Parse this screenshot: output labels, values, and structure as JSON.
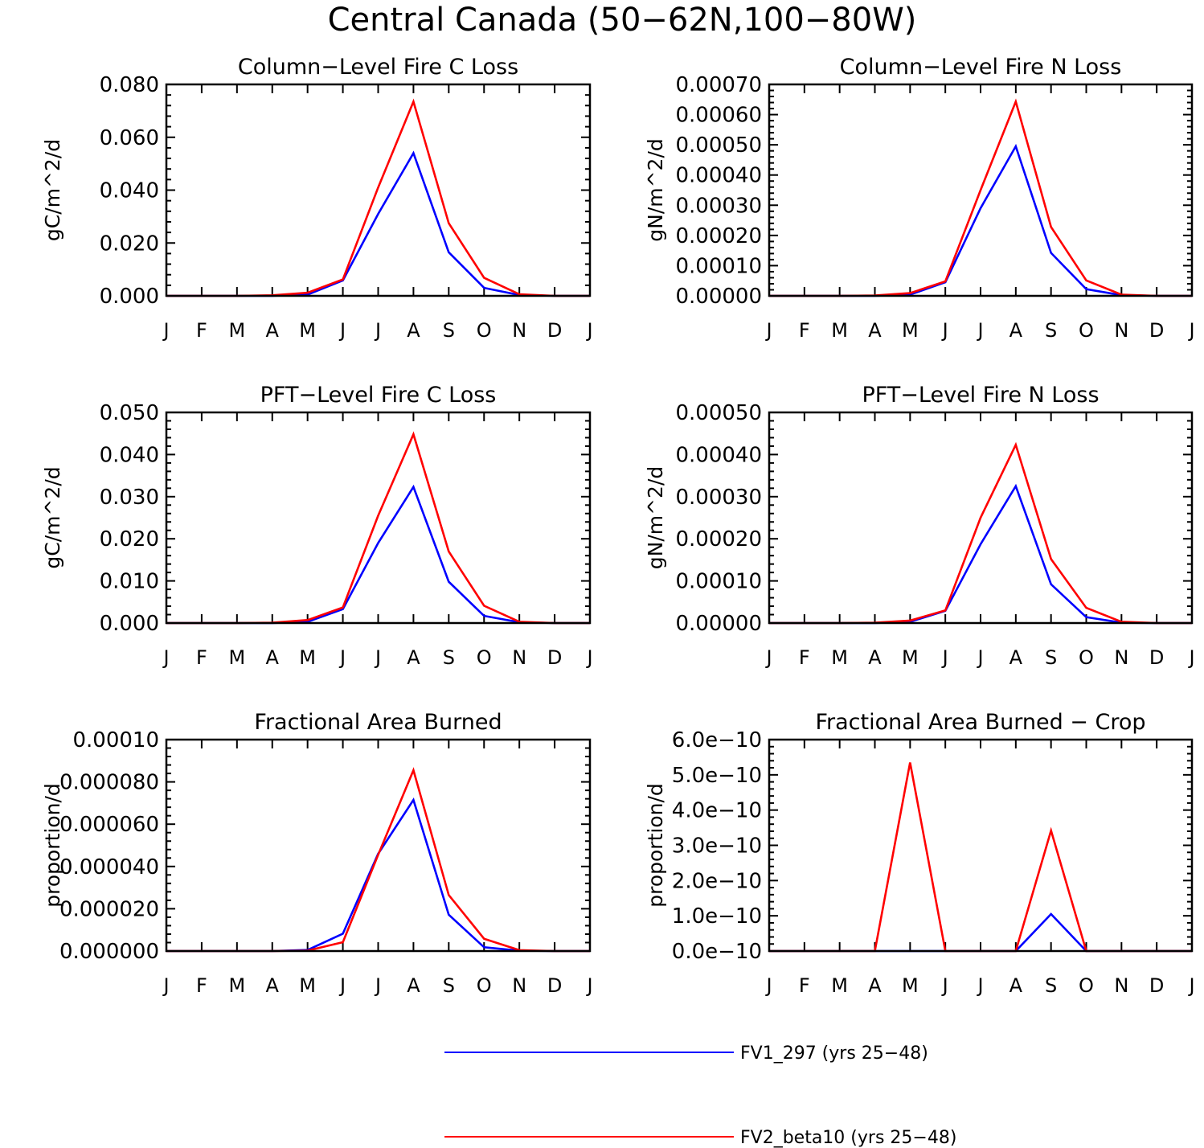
{
  "figure_title": "Central Canada (50−62N,100−80W)",
  "legend": [
    {
      "label": "FV1_297 (yrs 25−48)",
      "color": "#0000ff"
    },
    {
      "label": "FV2_beta10 (yrs 25−48)",
      "color": "#ff0000"
    }
  ],
  "chart_data": [
    {
      "type": "line",
      "title": "Column−Level Fire C Loss",
      "ylabel": "gC/m^2/d",
      "xlabel": "",
      "categories": [
        "J",
        "F",
        "M",
        "A",
        "M",
        "J",
        "J",
        "A",
        "S",
        "O",
        "N",
        "D",
        "J"
      ],
      "ylim": [
        0,
        0.08
      ],
      "yticks": [
        0,
        0.02,
        0.04,
        0.06,
        0.08
      ],
      "ytick_labels": [
        "0.000",
        "0.020",
        "0.040",
        "0.060",
        "0.080"
      ],
      "series": [
        {
          "name": "FV1_297 (yrs 25−48)",
          "color": "#0000ff",
          "values": [
            0,
            0,
            0,
            0,
            0.0005,
            0.0058,
            0.031,
            0.054,
            0.0165,
            0.003,
            0.0003,
            0,
            0
          ]
        },
        {
          "name": "FV2_beta10 (yrs 25−48)",
          "color": "#ff0000",
          "values": [
            0,
            0,
            0,
            0.0002,
            0.0012,
            0.0062,
            0.041,
            0.0735,
            0.0275,
            0.0068,
            0.0006,
            0,
            0
          ]
        }
      ]
    },
    {
      "type": "line",
      "title": "Column−Level Fire N Loss",
      "ylabel": "gN/m^2/d",
      "xlabel": "",
      "categories": [
        "J",
        "F",
        "M",
        "A",
        "M",
        "J",
        "J",
        "A",
        "S",
        "O",
        "N",
        "D",
        "J"
      ],
      "ylim": [
        0,
        0.0007
      ],
      "yticks": [
        0,
        0.0001,
        0.0002,
        0.0003,
        0.0004,
        0.0005,
        0.0006,
        0.0007
      ],
      "ytick_labels": [
        "0.00000",
        "0.00010",
        "0.00020",
        "0.00030",
        "0.00040",
        "0.00050",
        "0.00060",
        "0.00070"
      ],
      "series": [
        {
          "name": "FV1_297 (yrs 25−48)",
          "color": "#0000ff",
          "values": [
            0,
            0,
            0,
            0,
            4e-06,
            4.5e-05,
            0.00029,
            0.000495,
            0.000142,
            2.2e-05,
            2e-06,
            0,
            0
          ]
        },
        {
          "name": "FV2_beta10 (yrs 25−48)",
          "color": "#ff0000",
          "values": [
            0,
            0,
            0,
            1e-06,
            9e-06,
            4.8e-05,
            0.00035,
            0.000643,
            0.000228,
            5.1e-05,
            4e-06,
            0,
            0
          ]
        }
      ]
    },
    {
      "type": "line",
      "title": "PFT−Level Fire C Loss",
      "ylabel": "gC/m^2/d",
      "xlabel": "",
      "categories": [
        "J",
        "F",
        "M",
        "A",
        "M",
        "J",
        "J",
        "A",
        "S",
        "O",
        "N",
        "D",
        "J"
      ],
      "ylim": [
        0,
        0.05
      ],
      "yticks": [
        0,
        0.01,
        0.02,
        0.03,
        0.04,
        0.05
      ],
      "ytick_labels": [
        "0.000",
        "0.010",
        "0.020",
        "0.030",
        "0.040",
        "0.050"
      ],
      "series": [
        {
          "name": "FV1_297 (yrs 25−48)",
          "color": "#0000ff",
          "values": [
            0,
            0,
            0,
            0,
            0.0003,
            0.0033,
            0.019,
            0.0323,
            0.0098,
            0.0017,
            0.0002,
            0,
            0
          ]
        },
        {
          "name": "FV2_beta10 (yrs 25−48)",
          "color": "#ff0000",
          "values": [
            0,
            0,
            0,
            0.0001,
            0.0007,
            0.0037,
            0.0255,
            0.0448,
            0.017,
            0.0041,
            0.0003,
            0,
            0
          ]
        }
      ]
    },
    {
      "type": "line",
      "title": "PFT−Level Fire N Loss",
      "ylabel": "gN/m^2/d",
      "xlabel": "",
      "categories": [
        "J",
        "F",
        "M",
        "A",
        "M",
        "J",
        "J",
        "A",
        "S",
        "O",
        "N",
        "D",
        "J"
      ],
      "ylim": [
        0,
        0.0005
      ],
      "yticks": [
        0,
        0.0001,
        0.0002,
        0.0003,
        0.0004,
        0.0005
      ],
      "ytick_labels": [
        "0.00000",
        "0.00010",
        "0.00020",
        "0.00030",
        "0.00040",
        "0.00050"
      ],
      "series": [
        {
          "name": "FV1_297 (yrs 25−48)",
          "color": "#0000ff",
          "values": [
            0,
            0,
            0,
            0,
            3e-06,
            2.9e-05,
            0.000187,
            0.000325,
            9.2e-05,
            1.4e-05,
            1e-06,
            0,
            0
          ]
        },
        {
          "name": "FV2_beta10 (yrs 25−48)",
          "color": "#ff0000",
          "values": [
            0,
            0,
            0,
            1e-06,
            6e-06,
            3e-05,
            0.00025,
            0.000423,
            0.000152,
            3.6e-05,
            3e-06,
            0,
            0
          ]
        }
      ]
    },
    {
      "type": "line",
      "title": "Fractional Area Burned",
      "ylabel": "proportion/d",
      "xlabel": "",
      "categories": [
        "J",
        "F",
        "M",
        "A",
        "M",
        "J",
        "J",
        "A",
        "S",
        "O",
        "N",
        "D",
        "J"
      ],
      "ylim": [
        0,
        0.0001
      ],
      "yticks": [
        0,
        2e-05,
        4e-05,
        6e-05,
        8e-05,
        0.0001
      ],
      "ytick_labels": [
        "0.000000",
        "0.000020",
        "0.000040",
        "0.000060",
        "0.000080",
        "0.00010"
      ],
      "series": [
        {
          "name": "FV1_297 (yrs 25−48)",
          "color": "#0000ff",
          "values": [
            0,
            0,
            0,
            0,
            5e-07,
            8.2e-06,
            4.6e-05,
            7.15e-05,
            1.72e-05,
            1.8e-06,
            2e-07,
            0,
            0
          ]
        },
        {
          "name": "FV2_beta10 (yrs 25−48)",
          "color": "#ff0000",
          "values": [
            0,
            0,
            0,
            0,
            2e-07,
            4.2e-06,
            4.55e-05,
            8.55e-05,
            2.65e-05,
            5.8e-06,
            4e-07,
            0,
            0
          ]
        }
      ]
    },
    {
      "type": "line",
      "title": "Fractional Area Burned − Crop",
      "ylabel": "proportion/d",
      "xlabel": "",
      "categories": [
        "J",
        "F",
        "M",
        "A",
        "M",
        "J",
        "J",
        "A",
        "S",
        "O",
        "N",
        "D",
        "J"
      ],
      "ylim": [
        0,
        6e-10
      ],
      "yticks": [
        0,
        1e-10,
        2e-10,
        3e-10,
        4e-10,
        5e-10,
        6e-10
      ],
      "ytick_labels": [
        "0.0e−10",
        "1.0e−10",
        "2.0e−10",
        "3.0e−10",
        "4.0e−10",
        "5.0e−10",
        "6.0e−10"
      ],
      "series": [
        {
          "name": "FV1_297 (yrs 25−48)",
          "color": "#0000ff",
          "values": [
            0,
            0,
            0,
            0,
            0,
            0,
            0,
            0,
            1.05e-10,
            0,
            0,
            0,
            0
          ]
        },
        {
          "name": "FV2_beta10 (yrs 25−48)",
          "color": "#ff0000",
          "values": [
            0,
            0,
            0,
            0,
            5.35e-10,
            0,
            0,
            0,
            3.42e-10,
            0,
            0,
            0,
            0
          ]
        }
      ]
    }
  ]
}
